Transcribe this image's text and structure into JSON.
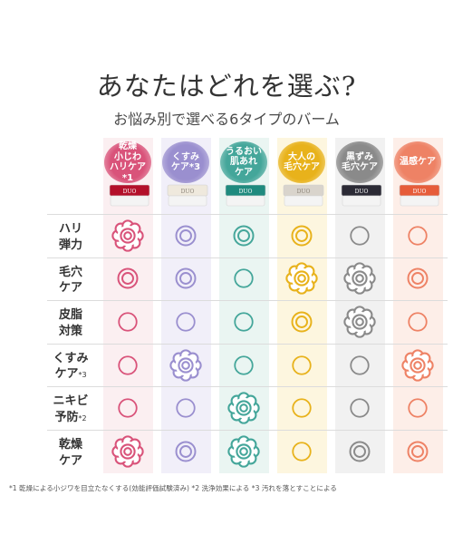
{
  "title": "あなたはどれを選ぶ?",
  "subtitle": "お悩み別で選べる6タイプのバーム",
  "columns": [
    {
      "label": [
        "乾燥",
        "小じわ",
        "ハリケア"
      ],
      "sup": "*1",
      "color": "#d9537a",
      "bg": "#fbeff1",
      "jar": "#b3102a",
      "brand": "DUO"
    },
    {
      "label": [
        "くすみ",
        "ケア"
      ],
      "sup": "*3",
      "color": "#9a8fcf",
      "bg": "#f1eff9",
      "jar": "#efe9dd",
      "brand": "DUO"
    },
    {
      "label": [
        "うるおい",
        "肌あれ",
        "ケア"
      ],
      "sup": "",
      "color": "#44a69a",
      "bg": "#eaf5f2",
      "jar": "#1f8a7e",
      "brand": "DUO"
    },
    {
      "label": [
        "大人の",
        "毛穴ケア"
      ],
      "sup": "",
      "color": "#e8b21b",
      "bg": "#fdf6df",
      "jar": "#d9d4cc",
      "brand": "DUO"
    },
    {
      "label": [
        "黒ずみ",
        "毛穴ケア"
      ],
      "sup": "",
      "color": "#8a8a8a",
      "bg": "#f1f1f1",
      "jar": "#2b2a35",
      "brand": "DUO"
    },
    {
      "label": [
        "温感ケア"
      ],
      "sup": "",
      "color": "#ee8265",
      "bg": "#fdeee8",
      "jar": "#e65c3a",
      "brand": "DUO"
    }
  ],
  "rows": [
    {
      "label": [
        "ハリ",
        "弾力"
      ],
      "sup": "",
      "marks": [
        "flower",
        "double",
        "double",
        "double",
        "single",
        "single"
      ]
    },
    {
      "label": [
        "毛穴",
        "ケア"
      ],
      "sup": "",
      "marks": [
        "double",
        "double",
        "single",
        "flower",
        "flower",
        "double"
      ]
    },
    {
      "label": [
        "皮脂",
        "対策"
      ],
      "sup": "",
      "marks": [
        "single",
        "single",
        "single",
        "double",
        "flower",
        "single"
      ]
    },
    {
      "label": [
        "くすみ",
        "ケア"
      ],
      "sup": "*3",
      "marks": [
        "single",
        "flower",
        "single",
        "single",
        "single",
        "flower"
      ]
    },
    {
      "label": [
        "ニキビ",
        "予防"
      ],
      "sup": "*2",
      "marks": [
        "single",
        "single",
        "flower",
        "single",
        "single",
        "single"
      ]
    },
    {
      "label": [
        "乾燥",
        "ケア"
      ],
      "sup": "",
      "marks": [
        "flower",
        "double",
        "flower",
        "single",
        "double",
        "double"
      ]
    }
  ],
  "footnote": "*1 乾燥による小ジワを目立たなくする(効能評価試験済み)  *2 洗浄効果による *3 汚れを落とすことによる"
}
